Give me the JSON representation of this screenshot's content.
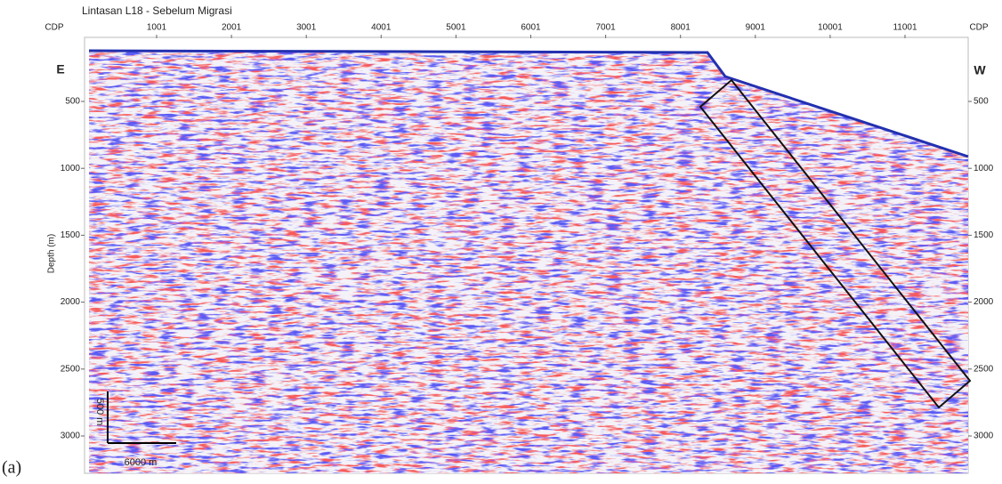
{
  "figure": {
    "title": "Lintasan L18 - Sebelum Migrasi",
    "cdp_label_left": "CDP",
    "cdp_label_right": "CDP",
    "cdp_ticks": [
      1001,
      2001,
      3001,
      4001,
      5001,
      6001,
      7001,
      8001,
      9001,
      10001,
      11001
    ],
    "depth_label": "Depth (m)",
    "depth_ticks": [
      500,
      1000,
      1500,
      2000,
      2500,
      3000
    ],
    "left_marker": "E",
    "right_marker": "W",
    "scale_vertical": "500 m",
    "scale_horizontal": "6000 m",
    "panel_label": "(a)"
  }
}
